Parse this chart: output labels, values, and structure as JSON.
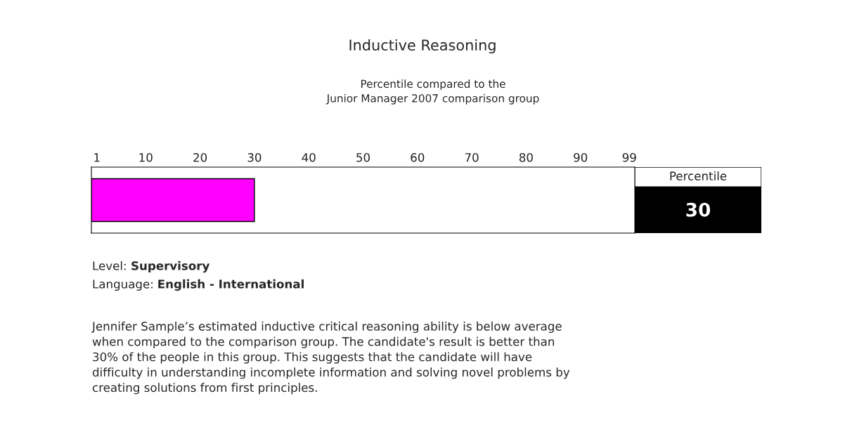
{
  "chart_data": {
    "type": "bar",
    "orientation": "horizontal",
    "title": "Inductive Reasoning",
    "subtitle": "Percentile compared to the\nJunior Manager 2007 comparison group",
    "categories": [
      null
    ],
    "values": [
      30
    ],
    "color": "#ff00ff",
    "xlim": [
      0,
      100
    ],
    "xticks": [
      1,
      10,
      20,
      30,
      40,
      50,
      60,
      70,
      80,
      90,
      99
    ],
    "annotations": [
      "Percentile",
      "30",
      "Level:",
      "Supervisory",
      "Language:",
      "English - International",
      "Jennifer Sample’s estimated inductive critical reasoning ability is below average\nwhen compared to the comparison group. The candidate's result is better than\n30% of the people in this group. This suggests that the candidate will have\ndifficulty in understanding incomplete information and solving novel problems by\ncreating solutions from first principles."
    ]
  }
}
